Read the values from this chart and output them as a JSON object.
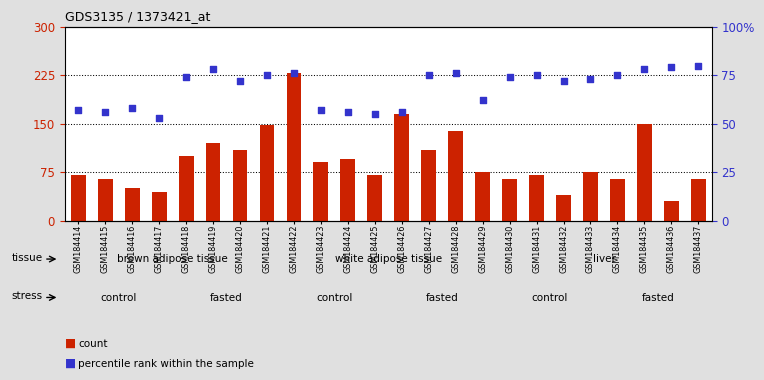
{
  "title": "GDS3135 / 1373421_at",
  "samples": [
    "GSM184414",
    "GSM184415",
    "GSM184416",
    "GSM184417",
    "GSM184418",
    "GSM184419",
    "GSM184420",
    "GSM184421",
    "GSM184422",
    "GSM184423",
    "GSM184424",
    "GSM184425",
    "GSM184426",
    "GSM184427",
    "GSM184428",
    "GSM184429",
    "GSM184430",
    "GSM184431",
    "GSM184432",
    "GSM184433",
    "GSM184434",
    "GSM184435",
    "GSM184436",
    "GSM184437"
  ],
  "bar_values": [
    70,
    65,
    50,
    45,
    100,
    120,
    110,
    148,
    228,
    90,
    95,
    70,
    165,
    110,
    138,
    75,
    65,
    70,
    40,
    75,
    65,
    150,
    30,
    65
  ],
  "dot_values": [
    57,
    56,
    58,
    53,
    74,
    78,
    72,
    75,
    76,
    57,
    56,
    55,
    56,
    75,
    76,
    62,
    74,
    75,
    72,
    73,
    75,
    78,
    79,
    80
  ],
  "bar_color": "#cc2200",
  "dot_color": "#3333cc",
  "ylim_left": [
    0,
    300
  ],
  "ylim_right": [
    0,
    100
  ],
  "yticks_left": [
    0,
    75,
    150,
    225,
    300
  ],
  "yticks_right": [
    0,
    25,
    50,
    75,
    100
  ],
  "tissue_groups": [
    {
      "label": "brown adipose tissue",
      "start": 0,
      "end": 8,
      "color": "#ccffcc"
    },
    {
      "label": "white adipose tissue",
      "start": 8,
      "end": 16,
      "color": "#99ee99"
    },
    {
      "label": "liver",
      "start": 16,
      "end": 24,
      "color": "#55cc55"
    }
  ],
  "stress_groups": [
    {
      "label": "control",
      "start": 0,
      "end": 4,
      "color": "#eeaaee"
    },
    {
      "label": "fasted",
      "start": 4,
      "end": 8,
      "color": "#dd55dd"
    },
    {
      "label": "control",
      "start": 8,
      "end": 12,
      "color": "#eeaaee"
    },
    {
      "label": "fasted",
      "start": 12,
      "end": 16,
      "color": "#dd55dd"
    },
    {
      "label": "control",
      "start": 16,
      "end": 20,
      "color": "#eeaaee"
    },
    {
      "label": "fasted",
      "start": 20,
      "end": 24,
      "color": "#dd55dd"
    }
  ],
  "legend_bar_label": "count",
  "legend_dot_label": "percentile rank within the sample",
  "bg_color": "#e0e0e0",
  "plot_bg": "#ffffff",
  "n": 24
}
